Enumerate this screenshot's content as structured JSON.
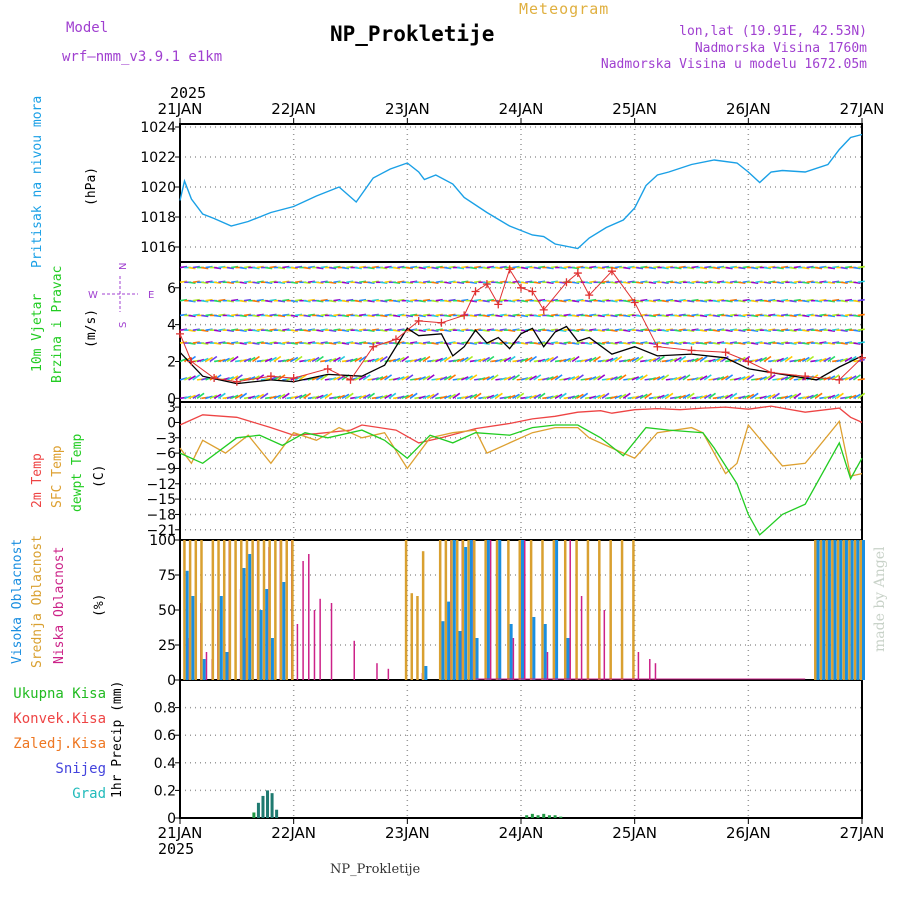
{
  "header": {
    "model_label": "Model",
    "model_name": "wrf—nmm_v3.9.1 e1km",
    "chart_type_label": "Meteogram",
    "station": "NP_Prokletije",
    "lonlat": "lon,lat (19.91E, 42.53N)",
    "altitude": "Nadmorska Visina 1760m",
    "model_altitude": "Nadmorska Visina u modelu 1672.05m",
    "year_top": "2025",
    "year_bottom": "2025",
    "footer_station": "NP_Prokletije",
    "credit": "made by Angel"
  },
  "colors": {
    "pressure": "#1aa0e6",
    "temp2m": "#ee4444",
    "sfc_temp": "#dda030",
    "dewpt": "#22cc22",
    "high_cloud": "#1a8ee0",
    "mid_cloud": "#d9a030",
    "low_cloud": "#cc2288",
    "precip_total": "#1f7a70",
    "precip_small": "#229944",
    "label_purple": "#a040d0"
  },
  "chart_data": [
    {
      "panel": "pressure",
      "type": "line",
      "ylabel": [
        "Pritisak na nivou mora",
        "(hPa)"
      ],
      "ylim": [
        1015,
        1024.2
      ],
      "yticks": [
        1016,
        1018,
        1020,
        1022,
        1024
      ],
      "grid": true,
      "x_days": [
        0,
        0.04,
        0.1,
        0.2,
        0.3,
        0.45,
        0.6,
        0.8,
        1.0,
        1.2,
        1.4,
        1.55,
        1.7,
        1.85,
        2.0,
        2.1,
        2.15,
        2.25,
        2.4,
        2.5,
        2.7,
        2.9,
        3.1,
        3.2,
        3.3,
        3.5,
        3.6,
        3.75,
        3.9,
        4.0,
        4.1,
        4.2,
        4.3,
        4.5,
        4.7,
        4.9,
        5.0,
        5.1,
        5.2,
        5.3,
        5.5,
        5.7,
        5.8,
        5.9,
        6.0
      ],
      "values": [
        1019.1,
        1020.4,
        1019.2,
        1018.2,
        1017.9,
        1017.4,
        1017.7,
        1018.3,
        1018.7,
        1019.4,
        1020.0,
        1019.0,
        1020.6,
        1021.2,
        1021.6,
        1021.0,
        1020.5,
        1020.8,
        1020.2,
        1019.3,
        1018.3,
        1017.4,
        1016.8,
        1016.7,
        1016.2,
        1015.9,
        1016.6,
        1017.3,
        1017.8,
        1018.6,
        1020.1,
        1020.8,
        1021.0,
        1021.5,
        1021.8,
        1021.6,
        1021.0,
        1020.3,
        1021.0,
        1021.1,
        1021.0,
        1021.5,
        1022.5,
        1023.3,
        1023.5
      ]
    },
    {
      "panel": "wind",
      "type": "line",
      "ylabel": [
        "10m Vjetar",
        "Brzina i Pravac",
        "(m/s)"
      ],
      "compass": {
        "n": "N",
        "s": "S",
        "w": "W",
        "e": "E"
      },
      "ylim": [
        -0.2,
        7.4
      ],
      "yticks": [
        0,
        2,
        4,
        6
      ],
      "series": [
        {
          "type": "line",
          "x": [
            0,
            0.2,
            0.5,
            0.8,
            1.0,
            1.3,
            1.6,
            1.8,
            2.0,
            2.1,
            2.3,
            2.4,
            2.5,
            2.6,
            2.7,
            2.8,
            2.9,
            3.0,
            3.1,
            3.2,
            3.3,
            3.4,
            3.5,
            3.6,
            3.8,
            4.0,
            4.2,
            4.5,
            4.8,
            5.0,
            5.3,
            5.6,
            5.8,
            6.0
          ],
          "values": [
            2.5,
            1.2,
            0.8,
            1.0,
            0.9,
            1.3,
            1.2,
            1.8,
            3.8,
            3.4,
            3.5,
            2.3,
            2.8,
            3.7,
            3.0,
            3.3,
            2.7,
            3.5,
            3.8,
            2.8,
            3.6,
            3.9,
            3.1,
            3.3,
            2.4,
            2.8,
            2.3,
            2.4,
            2.2,
            1.6,
            1.3,
            1.0,
            1.7,
            2.3
          ]
        },
        {
          "type": "gust",
          "x": [
            0,
            0.1,
            0.3,
            0.5,
            0.8,
            1.0,
            1.3,
            1.5,
            1.7,
            1.9,
            2.1,
            2.3,
            2.5,
            2.6,
            2.7,
            2.8,
            2.9,
            3.0,
            3.1,
            3.2,
            3.4,
            3.5,
            3.6,
            3.8,
            4.0,
            4.2,
            4.5,
            4.8,
            5.0,
            5.2,
            5.5,
            5.8,
            6.0
          ],
          "values": [
            3.5,
            2.0,
            1.1,
            0.9,
            1.2,
            1.1,
            1.6,
            1.0,
            2.8,
            3.2,
            4.2,
            4.1,
            4.5,
            5.8,
            6.2,
            5.1,
            7.0,
            6.0,
            5.8,
            4.8,
            6.3,
            6.8,
            5.6,
            6.9,
            5.2,
            2.8,
            2.6,
            2.5,
            2.0,
            1.4,
            1.2,
            1.0,
            2.2
          ]
        }
      ]
    },
    {
      "panel": "temperature",
      "type": "line",
      "ylabel": [
        "2m Temp",
        "SFC Temp",
        "dewpt Temp",
        "(C)"
      ],
      "ylim": [
        -23,
        4
      ],
      "yticks": [
        -21,
        -18,
        -15,
        -12,
        -9,
        -6,
        -3,
        0,
        3
      ],
      "series": [
        {
          "name": "2m Temp",
          "x": [
            0,
            0.2,
            0.5,
            0.8,
            1.0,
            1.2,
            1.5,
            1.6,
            1.9,
            2.1,
            2.3,
            2.6,
            2.9,
            3.1,
            3.3,
            3.5,
            3.7,
            3.8,
            4.0,
            4.2,
            4.4,
            4.6,
            4.8,
            5.0,
            5.2,
            5.5,
            5.8,
            5.9,
            6.0
          ],
          "values": [
            -0.5,
            1.5,
            1.0,
            -1.0,
            -2.5,
            -2.2,
            -1.5,
            -0.5,
            -1.5,
            -4.0,
            -3.0,
            -1.2,
            -0.2,
            0.7,
            1.2,
            2.0,
            2.3,
            1.8,
            2.5,
            2.7,
            2.5,
            2.8,
            3.0,
            2.6,
            3.2,
            2.0,
            2.8,
            1.0,
            0.0
          ]
        },
        {
          "name": "SFC Temp",
          "x": [
            0,
            0.1,
            0.2,
            0.4,
            0.6,
            0.8,
            1.0,
            1.2,
            1.4,
            1.6,
            1.8,
            2.0,
            2.1,
            2.2,
            2.4,
            2.6,
            2.7,
            2.9,
            3.1,
            3.3,
            3.5,
            3.6,
            3.8,
            4.0,
            4.2,
            4.5,
            4.6,
            4.8,
            4.9,
            5.0,
            5.3,
            5.5,
            5.8,
            5.9,
            6.0
          ],
          "values": [
            -5.0,
            -8.0,
            -3.5,
            -6.0,
            -2.5,
            -8.0,
            -2.0,
            -3.5,
            -1.0,
            -3.0,
            -2.0,
            -9.0,
            -6.0,
            -3.0,
            -2.0,
            -1.5,
            -6.0,
            -4.0,
            -2.0,
            -1.0,
            -1.0,
            -3.0,
            -5.0,
            -7.0,
            -2.0,
            -1.0,
            -2.0,
            -10.0,
            -8.0,
            -0.5,
            -8.5,
            -8.0,
            0.2,
            -10.5,
            -10.0
          ]
        },
        {
          "name": "dewpt Temp",
          "x": [
            0,
            0.2,
            0.5,
            0.7,
            0.9,
            1.1,
            1.3,
            1.6,
            1.8,
            2.0,
            2.2,
            2.4,
            2.6,
            2.9,
            3.1,
            3.3,
            3.5,
            3.7,
            3.9,
            4.1,
            4.3,
            4.6,
            4.7,
            4.9,
            5.0,
            5.1,
            5.3,
            5.5,
            5.8,
            5.9,
            6.0
          ],
          "values": [
            -6.0,
            -8.0,
            -3.0,
            -2.5,
            -4.5,
            -2.0,
            -3.0,
            -1.5,
            -3.5,
            -7.0,
            -2.5,
            -4.0,
            -2.0,
            -2.5,
            -1.0,
            -0.5,
            -0.5,
            -3.0,
            -6.5,
            -1.0,
            -1.5,
            -2.0,
            -5.0,
            -12.0,
            -18.0,
            -22.0,
            -18.0,
            -16.0,
            -4.0,
            -11.0,
            -7.0
          ]
        }
      ]
    },
    {
      "panel": "cloud",
      "type": "bar",
      "ylabel": [
        "Visoka Oblacnost",
        "Srednja Oblacnost",
        "Niska Oblacnost",
        "(%)"
      ],
      "ylim": [
        0,
        100
      ],
      "yticks": [
        0,
        25,
        50,
        75,
        100
      ],
      "series_names": [
        "Visoka Oblacnost",
        "Srednja Oblacnost",
        "Niska Oblacnost"
      ],
      "bars": [
        [
          0.05,
          78,
          100,
          30
        ],
        [
          0.1,
          60,
          100,
          0
        ],
        [
          0.15,
          0,
          100,
          55
        ],
        [
          0.2,
          15,
          100,
          20
        ],
        [
          0.25,
          0,
          0,
          15
        ],
        [
          0.3,
          0,
          100,
          50
        ],
        [
          0.35,
          60,
          100,
          0
        ],
        [
          0.4,
          20,
          100,
          100
        ],
        [
          0.45,
          0,
          100,
          0
        ],
        [
          0.5,
          0,
          100,
          65
        ],
        [
          0.55,
          80,
          100,
          30
        ],
        [
          0.6,
          90,
          100,
          0
        ],
        [
          0.65,
          0,
          100,
          100
        ],
        [
          0.7,
          50,
          100,
          0
        ],
        [
          0.75,
          65,
          100,
          95
        ],
        [
          0.8,
          30,
          100,
          0
        ],
        [
          0.85,
          0,
          100,
          100
        ],
        [
          0.9,
          70,
          100,
          0
        ],
        [
          0.95,
          0,
          100,
          100
        ],
        [
          1.0,
          0,
          100,
          40
        ],
        [
          1.05,
          0,
          0,
          85
        ],
        [
          1.1,
          0,
          0,
          90
        ],
        [
          1.15,
          0,
          0,
          50
        ],
        [
          1.2,
          0,
          0,
          58
        ],
        [
          1.3,
          0,
          0,
          55
        ],
        [
          1.5,
          0,
          0,
          28
        ],
        [
          1.7,
          0,
          0,
          12
        ],
        [
          1.8,
          0,
          0,
          8
        ],
        [
          2.0,
          0,
          100,
          0
        ],
        [
          2.05,
          0,
          62,
          0
        ],
        [
          2.1,
          0,
          60,
          5
        ],
        [
          2.15,
          10,
          92,
          0
        ],
        [
          2.3,
          42,
          100,
          0
        ],
        [
          2.35,
          56,
          100,
          100
        ],
        [
          2.4,
          100,
          100,
          0
        ],
        [
          2.45,
          35,
          100,
          100
        ],
        [
          2.5,
          95,
          100,
          0
        ],
        [
          2.55,
          100,
          100,
          100
        ],
        [
          2.6,
          30,
          100,
          0
        ],
        [
          2.7,
          100,
          100,
          100
        ],
        [
          2.8,
          100,
          100,
          0
        ],
        [
          2.9,
          40,
          100,
          30
        ],
        [
          3.0,
          100,
          100,
          100
        ],
        [
          3.1,
          45,
          100,
          0
        ],
        [
          3.2,
          40,
          100,
          20
        ],
        [
          3.3,
          100,
          100,
          0
        ],
        [
          3.4,
          30,
          100,
          100
        ],
        [
          3.5,
          0,
          100,
          60
        ],
        [
          3.6,
          0,
          100,
          0
        ],
        [
          3.7,
          0,
          100,
          50
        ],
        [
          3.8,
          0,
          100,
          0
        ],
        [
          3.9,
          0,
          100,
          0
        ],
        [
          4.0,
          0,
          100,
          20
        ],
        [
          4.1,
          0,
          0,
          15
        ],
        [
          4.15,
          0,
          0,
          12
        ],
        [
          4.5,
          0,
          0,
          0
        ],
        [
          5.6,
          100,
          100,
          0
        ],
        [
          5.65,
          100,
          100,
          0
        ],
        [
          5.7,
          100,
          100,
          0
        ],
        [
          5.75,
          100,
          100,
          0
        ],
        [
          5.8,
          100,
          100,
          0
        ],
        [
          5.85,
          100,
          100,
          0
        ],
        [
          5.9,
          100,
          100,
          0
        ],
        [
          5.95,
          100,
          100,
          0
        ],
        [
          6.0,
          100,
          100,
          0
        ]
      ]
    },
    {
      "panel": "precip",
      "type": "bar",
      "ylabel": [
        "1hr Precip (mm)"
      ],
      "legend": [
        "Ukupna Kisa",
        "Konvek.Kisa",
        "Zaledj.Kisa",
        "Snijeg",
        "Grad"
      ],
      "legend_colors": [
        "#22bb22",
        "#ee4444",
        "#ee7722",
        "#4444dd",
        "#22bbbb"
      ],
      "ylim": [
        0,
        1.0
      ],
      "yticks": [
        0,
        0.2,
        0.4,
        0.6,
        0.8
      ],
      "x": [
        0.65,
        0.69,
        0.73,
        0.77,
        0.81,
        0.85,
        3.05,
        3.1,
        3.15,
        3.2,
        3.25,
        3.3,
        3.35
      ],
      "values": [
        0.04,
        0.11,
        0.16,
        0.2,
        0.18,
        0.06,
        0.02,
        0.03,
        0.02,
        0.03,
        0.02,
        0.02,
        0.01
      ]
    }
  ],
  "x_axis": {
    "day_labels": [
      "21JAN",
      "22JAN",
      "23JAN",
      "24JAN",
      "25JAN",
      "26JAN",
      "27JAN"
    ]
  }
}
